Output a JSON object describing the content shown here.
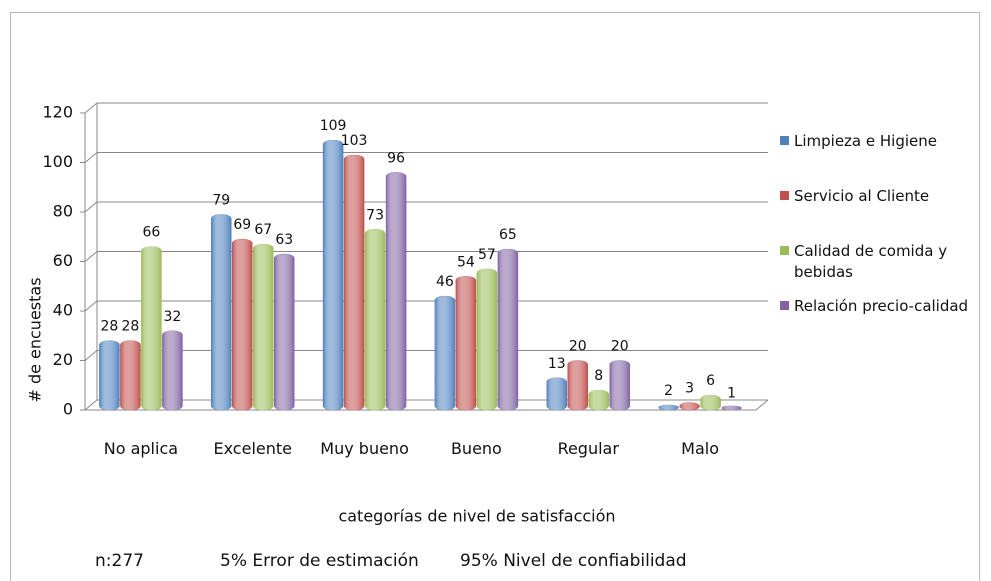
{
  "chart_data": {
    "type": "bar",
    "x_label": "categorías de nivel de satisfacción",
    "y_label": "# de encuestas",
    "categories": [
      "No aplica",
      "Excelente",
      "Muy bueno",
      "Bueno",
      "Regular",
      "Malo"
    ],
    "series": [
      {
        "name": "Limpieza e Higiene",
        "color": "#4f81bd",
        "values": [
          28,
          79,
          109,
          46,
          13,
          2
        ]
      },
      {
        "name": "Servicio al Cliente",
        "color": "#c0504d",
        "values": [
          28,
          69,
          103,
          54,
          20,
          3
        ]
      },
      {
        "name": "Calidad de comida y bebidas",
        "color": "#9bbb59",
        "values": [
          66,
          67,
          73,
          57,
          8,
          6
        ]
      },
      {
        "name": "Relación precio-calidad",
        "color": "#8064a2",
        "values": [
          32,
          63,
          96,
          65,
          20,
          1
        ]
      }
    ],
    "ylim": [
      0,
      120
    ],
    "yticks": [
      0,
      20,
      40,
      60,
      80,
      100,
      120
    ],
    "grid": true,
    "legend": "right",
    "notes": [
      "n:277",
      "5% Error de estimación",
      "95% Nivel de confiabilidad"
    ]
  }
}
